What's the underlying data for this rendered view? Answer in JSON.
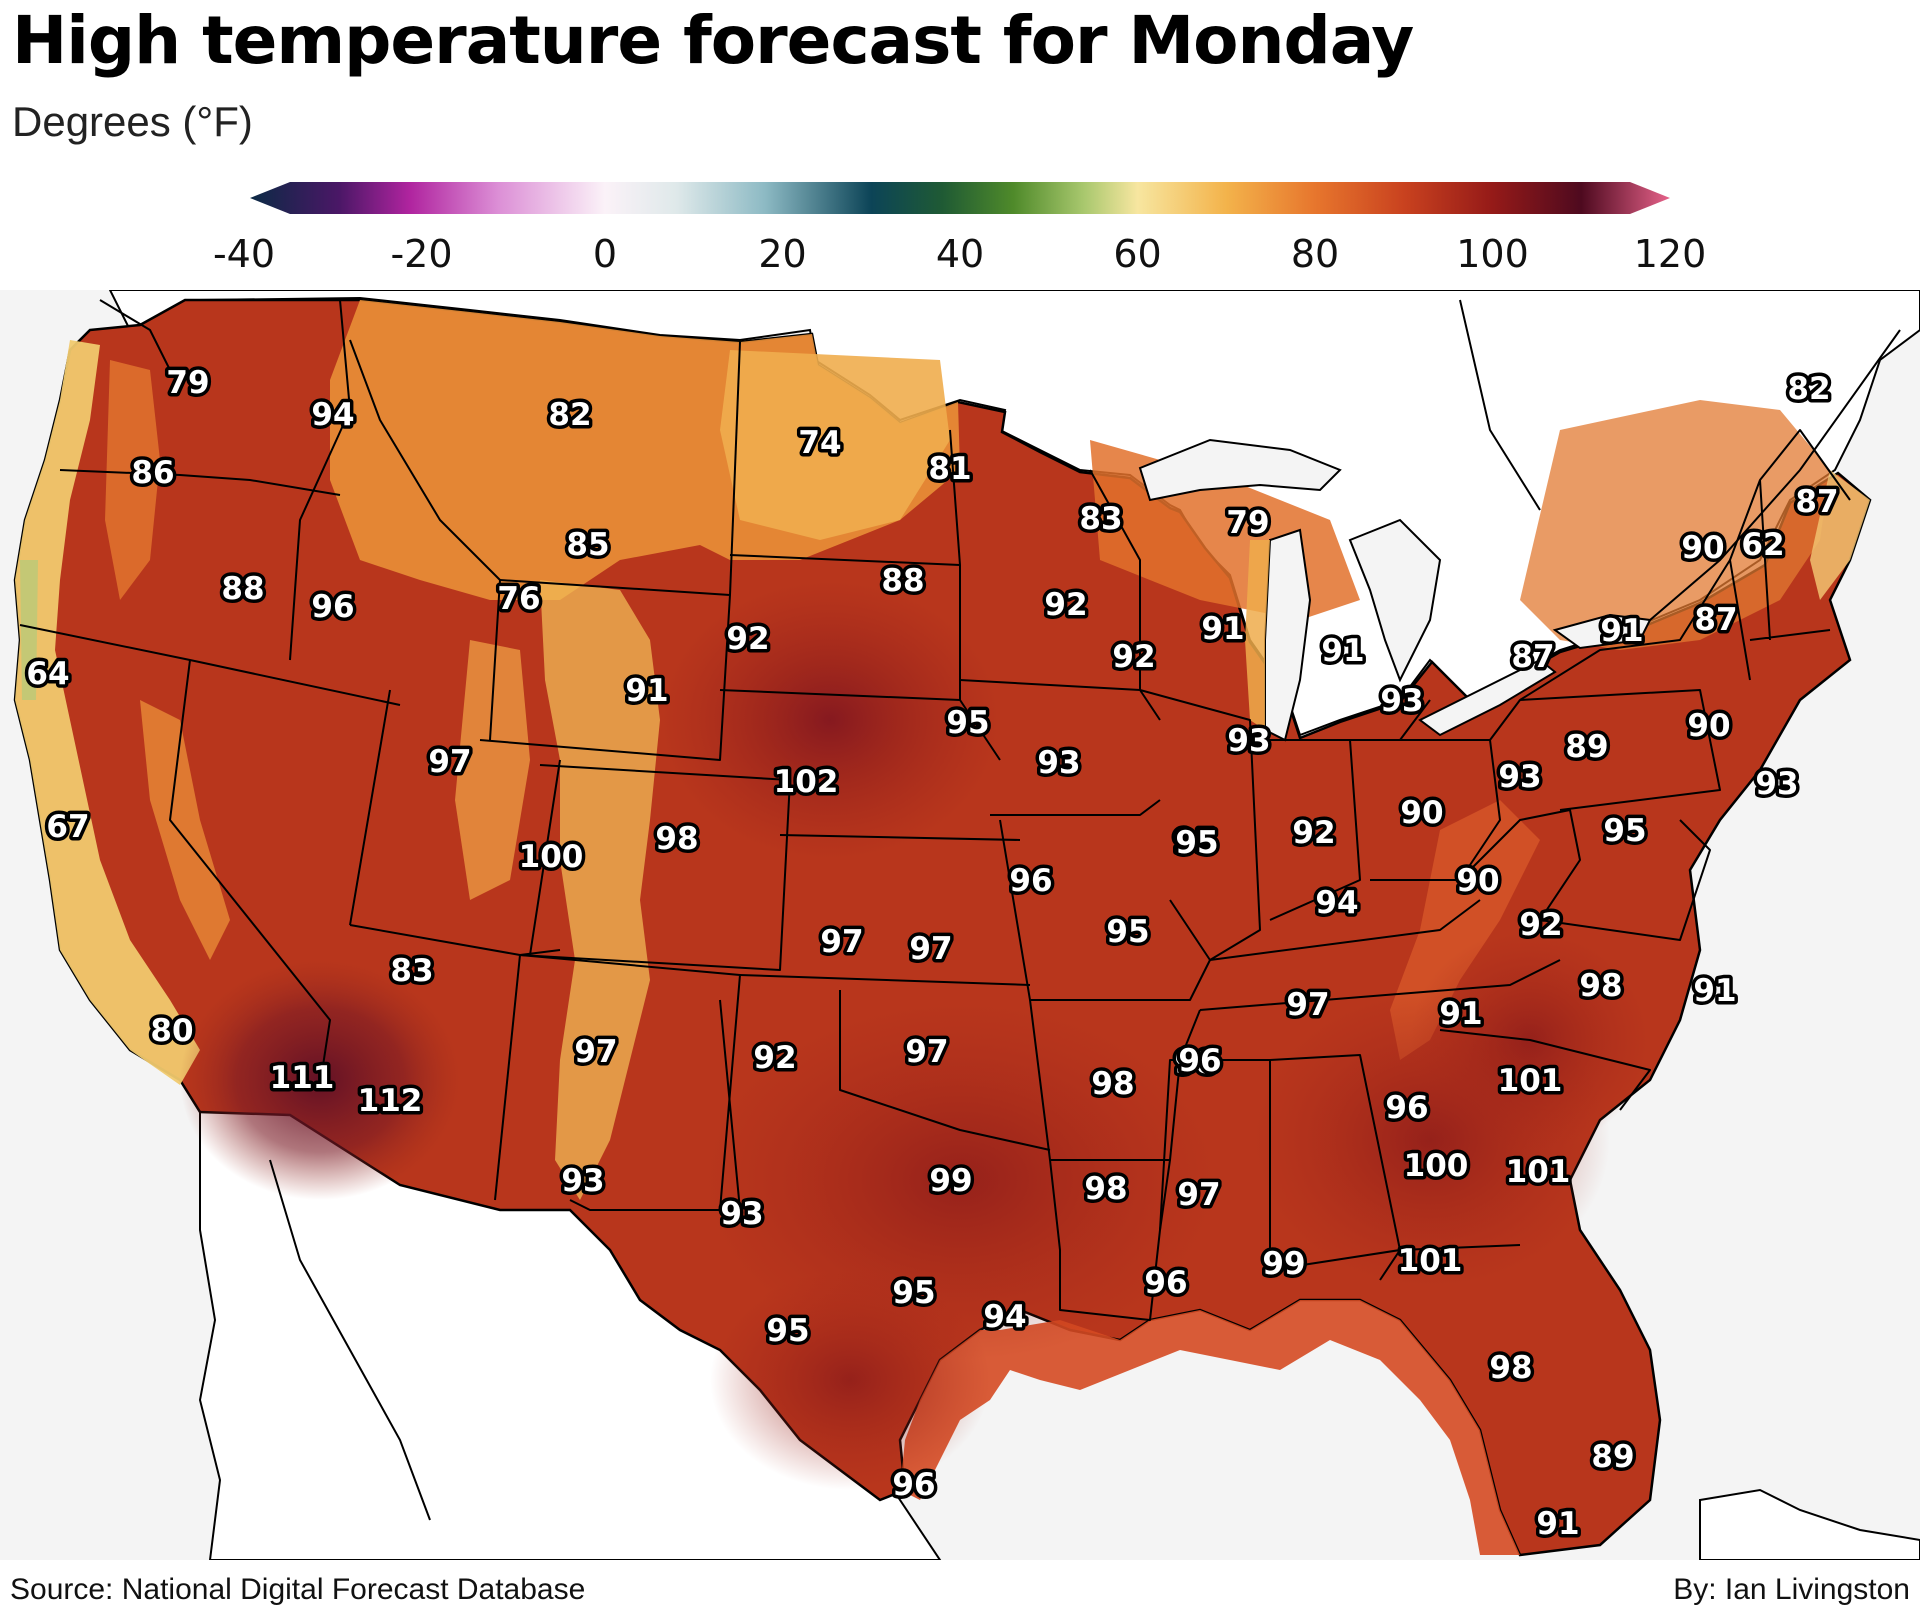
{
  "title": "High temperature forecast for Monday",
  "subtitle": "Degrees (°F)",
  "source": "Source: National Digital Forecast Database",
  "byline": "By: Ian Livingston",
  "legend": {
    "ticks": [
      "-40",
      "-20",
      "0",
      "20",
      "40",
      "60",
      "80",
      "100",
      "120"
    ],
    "stops": [
      {
        "v": -40,
        "c": "#0b2a45"
      },
      {
        "v": -30,
        "c": "#4a1766"
      },
      {
        "v": -22,
        "c": "#b0249f"
      },
      {
        "v": -12,
        "c": "#dc8fd6"
      },
      {
        "v": 0,
        "c": "#fbf2f8"
      },
      {
        "v": 8,
        "c": "#dfe9ea"
      },
      {
        "v": 18,
        "c": "#8dbac4"
      },
      {
        "v": 30,
        "c": "#0c4457"
      },
      {
        "v": 38,
        "c": "#1f5a34"
      },
      {
        "v": 46,
        "c": "#4f8a2a"
      },
      {
        "v": 54,
        "c": "#a9c86e"
      },
      {
        "v": 60,
        "c": "#f7e6a0"
      },
      {
        "v": 70,
        "c": "#f3b34b"
      },
      {
        "v": 80,
        "c": "#e7762d"
      },
      {
        "v": 90,
        "c": "#c9421f"
      },
      {
        "v": 100,
        "c": "#951a18"
      },
      {
        "v": 110,
        "c": "#4e0a1f"
      },
      {
        "v": 120,
        "c": "#e6628a"
      }
    ]
  },
  "colors": {
    "ocean": "#f4f4f4",
    "border": "#000000",
    "hot": "#b2321c",
    "warm": "#d2501f",
    "mild": "#eb8f36",
    "cool": "#f2c769",
    "extreme": "#6e1428",
    "coast": "#f0c96e"
  },
  "cities": [
    {
      "t": "79",
      "v": 79
    },
    {
      "t": "94",
      "v": 94
    },
    {
      "t": "82",
      "v": 82
    },
    {
      "t": "74",
      "v": 74
    },
    {
      "t": "81",
      "v": 81
    },
    {
      "t": "86",
      "v": 86
    },
    {
      "t": "85",
      "v": 85
    },
    {
      "t": "83",
      "v": 83
    },
    {
      "t": "79",
      "v": 79
    },
    {
      "t": "82",
      "v": 82
    },
    {
      "t": "87",
      "v": 87
    },
    {
      "t": "90",
      "v": 90
    },
    {
      "t": "62",
      "v": 62
    },
    {
      "t": "88",
      "v": 88
    },
    {
      "t": "96",
      "v": 96
    },
    {
      "t": "76",
      "v": 76
    },
    {
      "t": "88",
      "v": 88
    },
    {
      "t": "92",
      "v": 92
    },
    {
      "t": "92",
      "v": 92
    },
    {
      "t": "91",
      "v": 91
    },
    {
      "t": "87",
      "v": 87
    },
    {
      "t": "87",
      "v": 87
    },
    {
      "t": "91",
      "v": 91
    },
    {
      "t": "64",
      "v": 64
    },
    {
      "t": "91",
      "v": 91
    },
    {
      "t": "92",
      "v": 92
    },
    {
      "t": "93",
      "v": 93
    },
    {
      "t": "91",
      "v": 91
    },
    {
      "t": "95",
      "v": 95
    },
    {
      "t": "93",
      "v": 93
    },
    {
      "t": "90",
      "v": 90
    },
    {
      "t": "97",
      "v": 97
    },
    {
      "t": "93",
      "v": 93
    },
    {
      "t": "93",
      "v": 93
    },
    {
      "t": "89",
      "v": 89
    },
    {
      "t": "93",
      "v": 93
    },
    {
      "t": "102",
      "v": 102
    },
    {
      "t": "67",
      "v": 67
    },
    {
      "t": "98",
      "v": 98
    },
    {
      "t": "100",
      "v": 100
    },
    {
      "t": "95",
      "v": 95
    },
    {
      "t": "92",
      "v": 92
    },
    {
      "t": "90",
      "v": 90
    },
    {
      "t": "95",
      "v": 95
    },
    {
      "t": "95",
      "v": 95
    },
    {
      "t": "96",
      "v": 96
    },
    {
      "t": "90",
      "v": 90
    },
    {
      "t": "94",
      "v": 94
    },
    {
      "t": "92",
      "v": 92
    },
    {
      "t": "95",
      "v": 95
    },
    {
      "t": "97",
      "v": 97
    },
    {
      "t": "97",
      "v": 97
    },
    {
      "t": "83",
      "v": 83
    },
    {
      "t": "98",
      "v": 98
    },
    {
      "t": "91",
      "v": 91
    },
    {
      "t": "97",
      "v": 97
    },
    {
      "t": "91",
      "v": 91
    },
    {
      "t": "80",
      "v": 80
    },
    {
      "t": "97",
      "v": 97
    },
    {
      "t": "92",
      "v": 92
    },
    {
      "t": "97",
      "v": 97
    },
    {
      "t": "98",
      "v": 98
    },
    {
      "t": "98",
      "v": 98
    },
    {
      "t": "101",
      "v": 101
    },
    {
      "t": "111",
      "v": 111
    },
    {
      "t": "112",
      "v": 112
    },
    {
      "t": "96",
      "v": 96
    },
    {
      "t": "96",
      "v": 96
    },
    {
      "t": "100",
      "v": 100
    },
    {
      "t": "101",
      "v": 101
    },
    {
      "t": "93",
      "v": 93
    },
    {
      "t": "99",
      "v": 99
    },
    {
      "t": "98",
      "v": 98
    },
    {
      "t": "97",
      "v": 97
    },
    {
      "t": "93",
      "v": 93
    },
    {
      "t": "99",
      "v": 99
    },
    {
      "t": "101",
      "v": 101
    },
    {
      "t": "96",
      "v": 96
    },
    {
      "t": "95",
      "v": 95
    },
    {
      "t": "94",
      "v": 94
    },
    {
      "t": "95",
      "v": 95
    },
    {
      "t": "98",
      "v": 98
    },
    {
      "t": "89",
      "v": 89
    },
    {
      "t": "96",
      "v": 96
    },
    {
      "t": "91",
      "v": 91
    }
  ]
}
